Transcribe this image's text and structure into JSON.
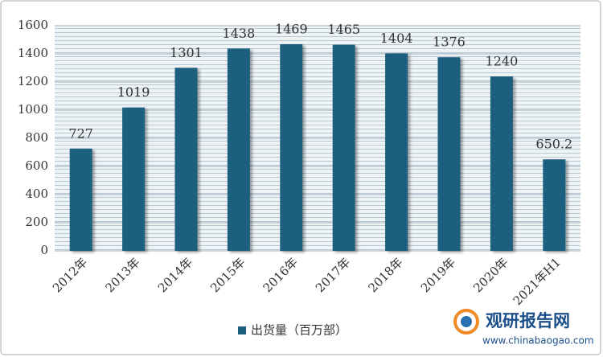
{
  "chart_data": {
    "type": "bar",
    "categories": [
      "2012年",
      "2013年",
      "2014年",
      "2015年",
      "2016年",
      "2017年",
      "2018年",
      "2019年",
      "2020年",
      "2021年H1"
    ],
    "series": [
      {
        "name": "出货量（百万部）",
        "color": "#1c5f7e",
        "values": [
          727,
          1019,
          1301,
          1438,
          1469,
          1465,
          1404,
          1376,
          1240,
          650.2
        ]
      }
    ],
    "ylim": [
      0,
      1600
    ],
    "yticks": [
      0,
      200,
      400,
      600,
      800,
      1000,
      1200,
      1400,
      1600
    ],
    "grid": true,
    "legend": "bottom"
  },
  "watermark": {
    "name": "观研报告网",
    "url": "www.chinabaogao.com"
  }
}
